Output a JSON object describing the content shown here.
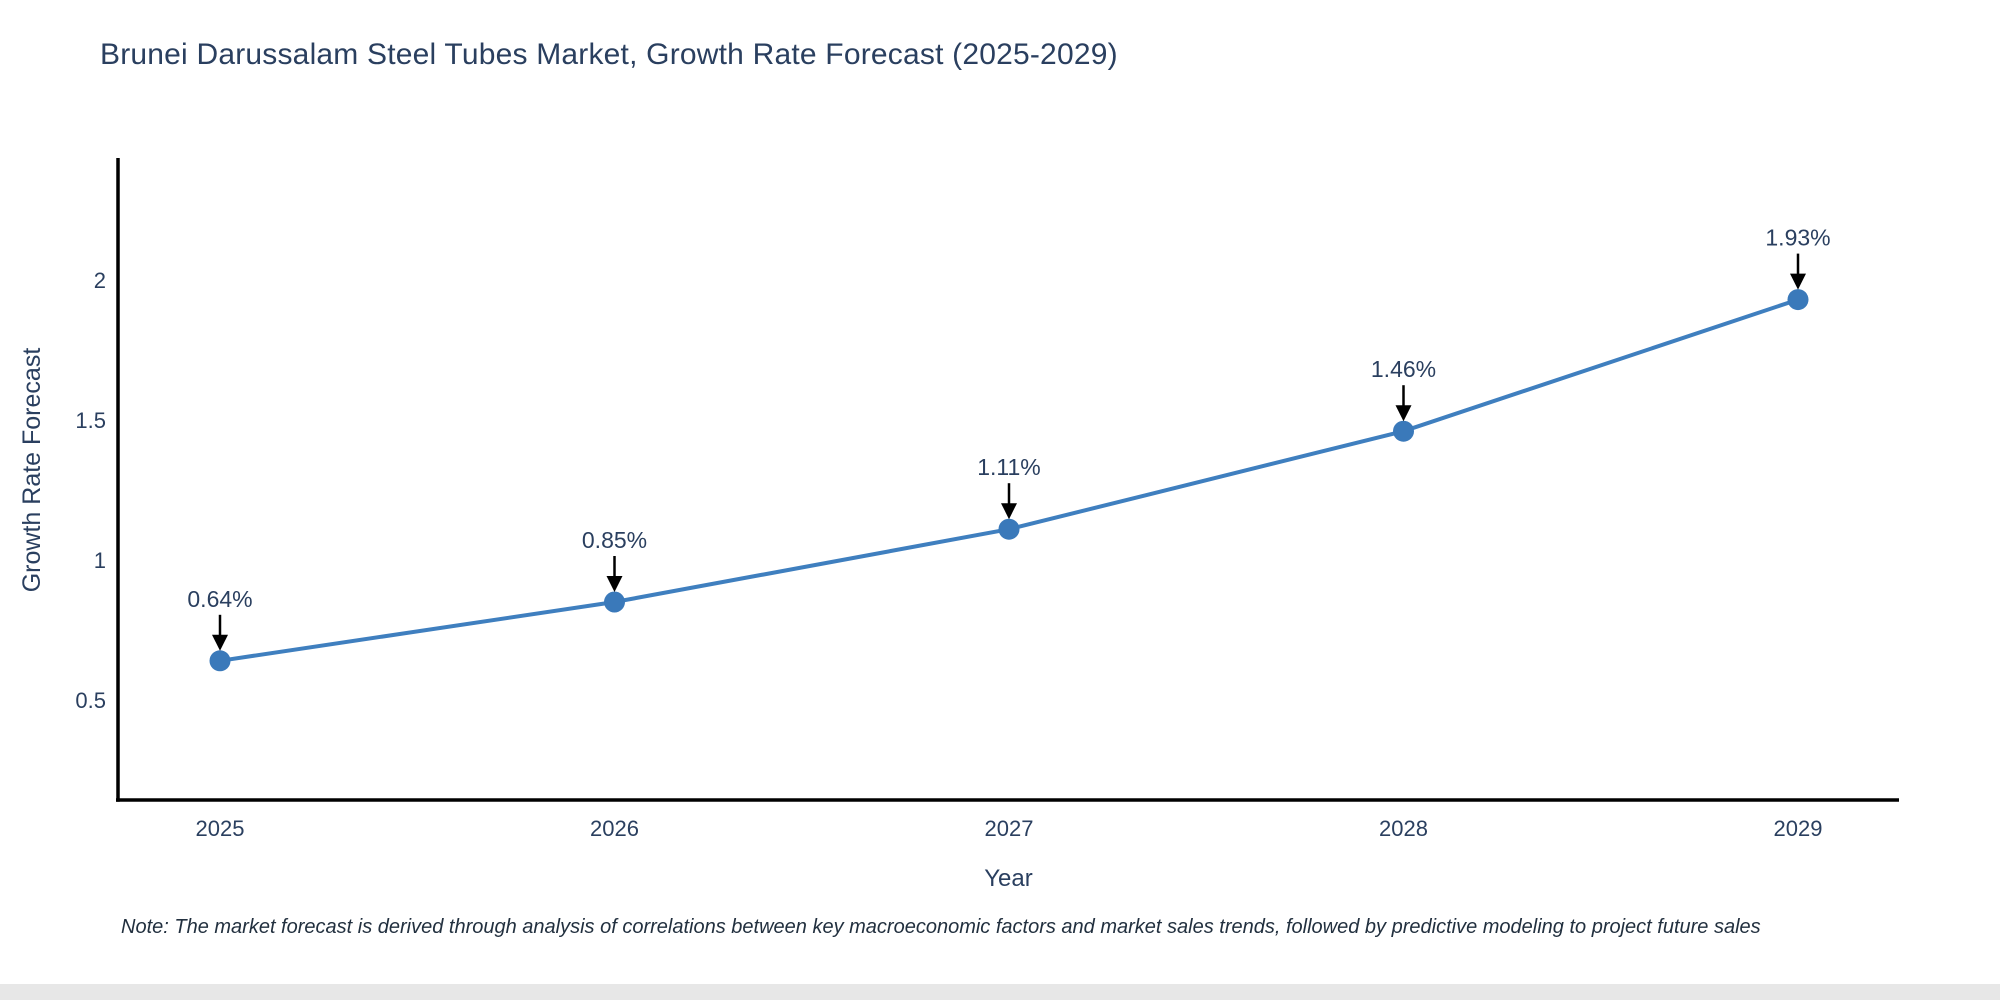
{
  "note": "Note: The market forecast is derived through analysis of correlations between key macroeconomic factors and market sales trends, followed by predictive modeling to project future sales",
  "chart_data": {
    "type": "line",
    "title": "Brunei Darussalam Steel Tubes Market, Growth Rate Forecast (2025-2029)",
    "x": [
      "2025",
      "2026",
      "2027",
      "2028",
      "2029"
    ],
    "series": [
      {
        "name": "Growth Rate Forecast",
        "values": [
          0.64,
          0.85,
          1.11,
          1.46,
          1.93
        ]
      }
    ],
    "point_labels": [
      "0.64%",
      "0.85%",
      "1.11%",
      "1.46%",
      "1.93%"
    ],
    "xlabel": "Year",
    "ylabel": "Growth Rate Forecast",
    "yticks": [
      0.5,
      1,
      1.5,
      2
    ],
    "ylim": [
      0.14,
      2.44
    ],
    "grid": false,
    "legend": "none",
    "annotations": "value labels with down arrows above each point",
    "colors": {
      "line": "#3f7fbf",
      "marker": "#3a79ba",
      "arrow": "#000000",
      "text": "#2a3f5f",
      "axis": "#000000"
    }
  }
}
